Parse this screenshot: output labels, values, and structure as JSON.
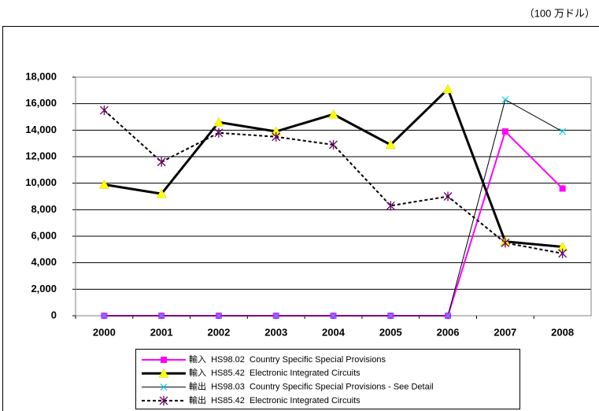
{
  "chart_data": {
    "type": "line",
    "unit_label": "（100 万ドル）",
    "categories": [
      "2000",
      "2001",
      "2002",
      "2003",
      "2004",
      "2005",
      "2006",
      "2007",
      "2008"
    ],
    "series": [
      {
        "name": "輸入  HS98.02  Country Specific Special Provisions",
        "color": "#ff00ff",
        "marker": "square",
        "marker_color": "#ff00ff",
        "line_width": 2,
        "dash": false,
        "values": [
          0,
          0,
          0,
          0,
          0,
          0,
          0,
          13900,
          9600
        ]
      },
      {
        "name": "輸入  HS85.42  Electronic Integrated Circuits",
        "color": "#000000",
        "marker": "triangle",
        "marker_color": "#ffff00",
        "line_width": 3,
        "dash": false,
        "values": [
          9900,
          9200,
          14600,
          13900,
          15200,
          12900,
          17100,
          5600,
          5200
        ]
      },
      {
        "name": "輸出  HS98.03  Country Specific Special Provisions - See Detail",
        "color": "#000000",
        "marker": "x",
        "marker_color": "#00ccff",
        "line_width": 1,
        "dash": false,
        "values": [
          0,
          0,
          0,
          0,
          0,
          0,
          0,
          16300,
          13900
        ]
      },
      {
        "name": "輸出  HS85.42  Electronic Integrated Circuits",
        "color": "#000000",
        "marker": "asterisk",
        "marker_color": "#660066",
        "line_width": 2,
        "dash": true,
        "values": [
          15500,
          11600,
          13800,
          13500,
          12900,
          8300,
          9000,
          5500,
          4700
        ]
      }
    ],
    "ylim": [
      0,
      18000
    ],
    "yticks": [
      0,
      {
        "value": 2000,
        "label": "2,000"
      },
      {
        "value": 4000,
        "label": "4,000"
      },
      {
        "value": 6000,
        "label": "6,000"
      },
      {
        "value": 8000,
        "label": "8,000"
      },
      {
        "value": 10000,
        "label": "10,000"
      },
      {
        "value": 12000,
        "label": "12,000"
      },
      {
        "value": 14000,
        "label": "14,000"
      },
      {
        "value": 16000,
        "label": "16,000"
      },
      {
        "value": 18000,
        "label": "18,000"
      }
    ],
    "grid": true,
    "legend": "bottom"
  }
}
